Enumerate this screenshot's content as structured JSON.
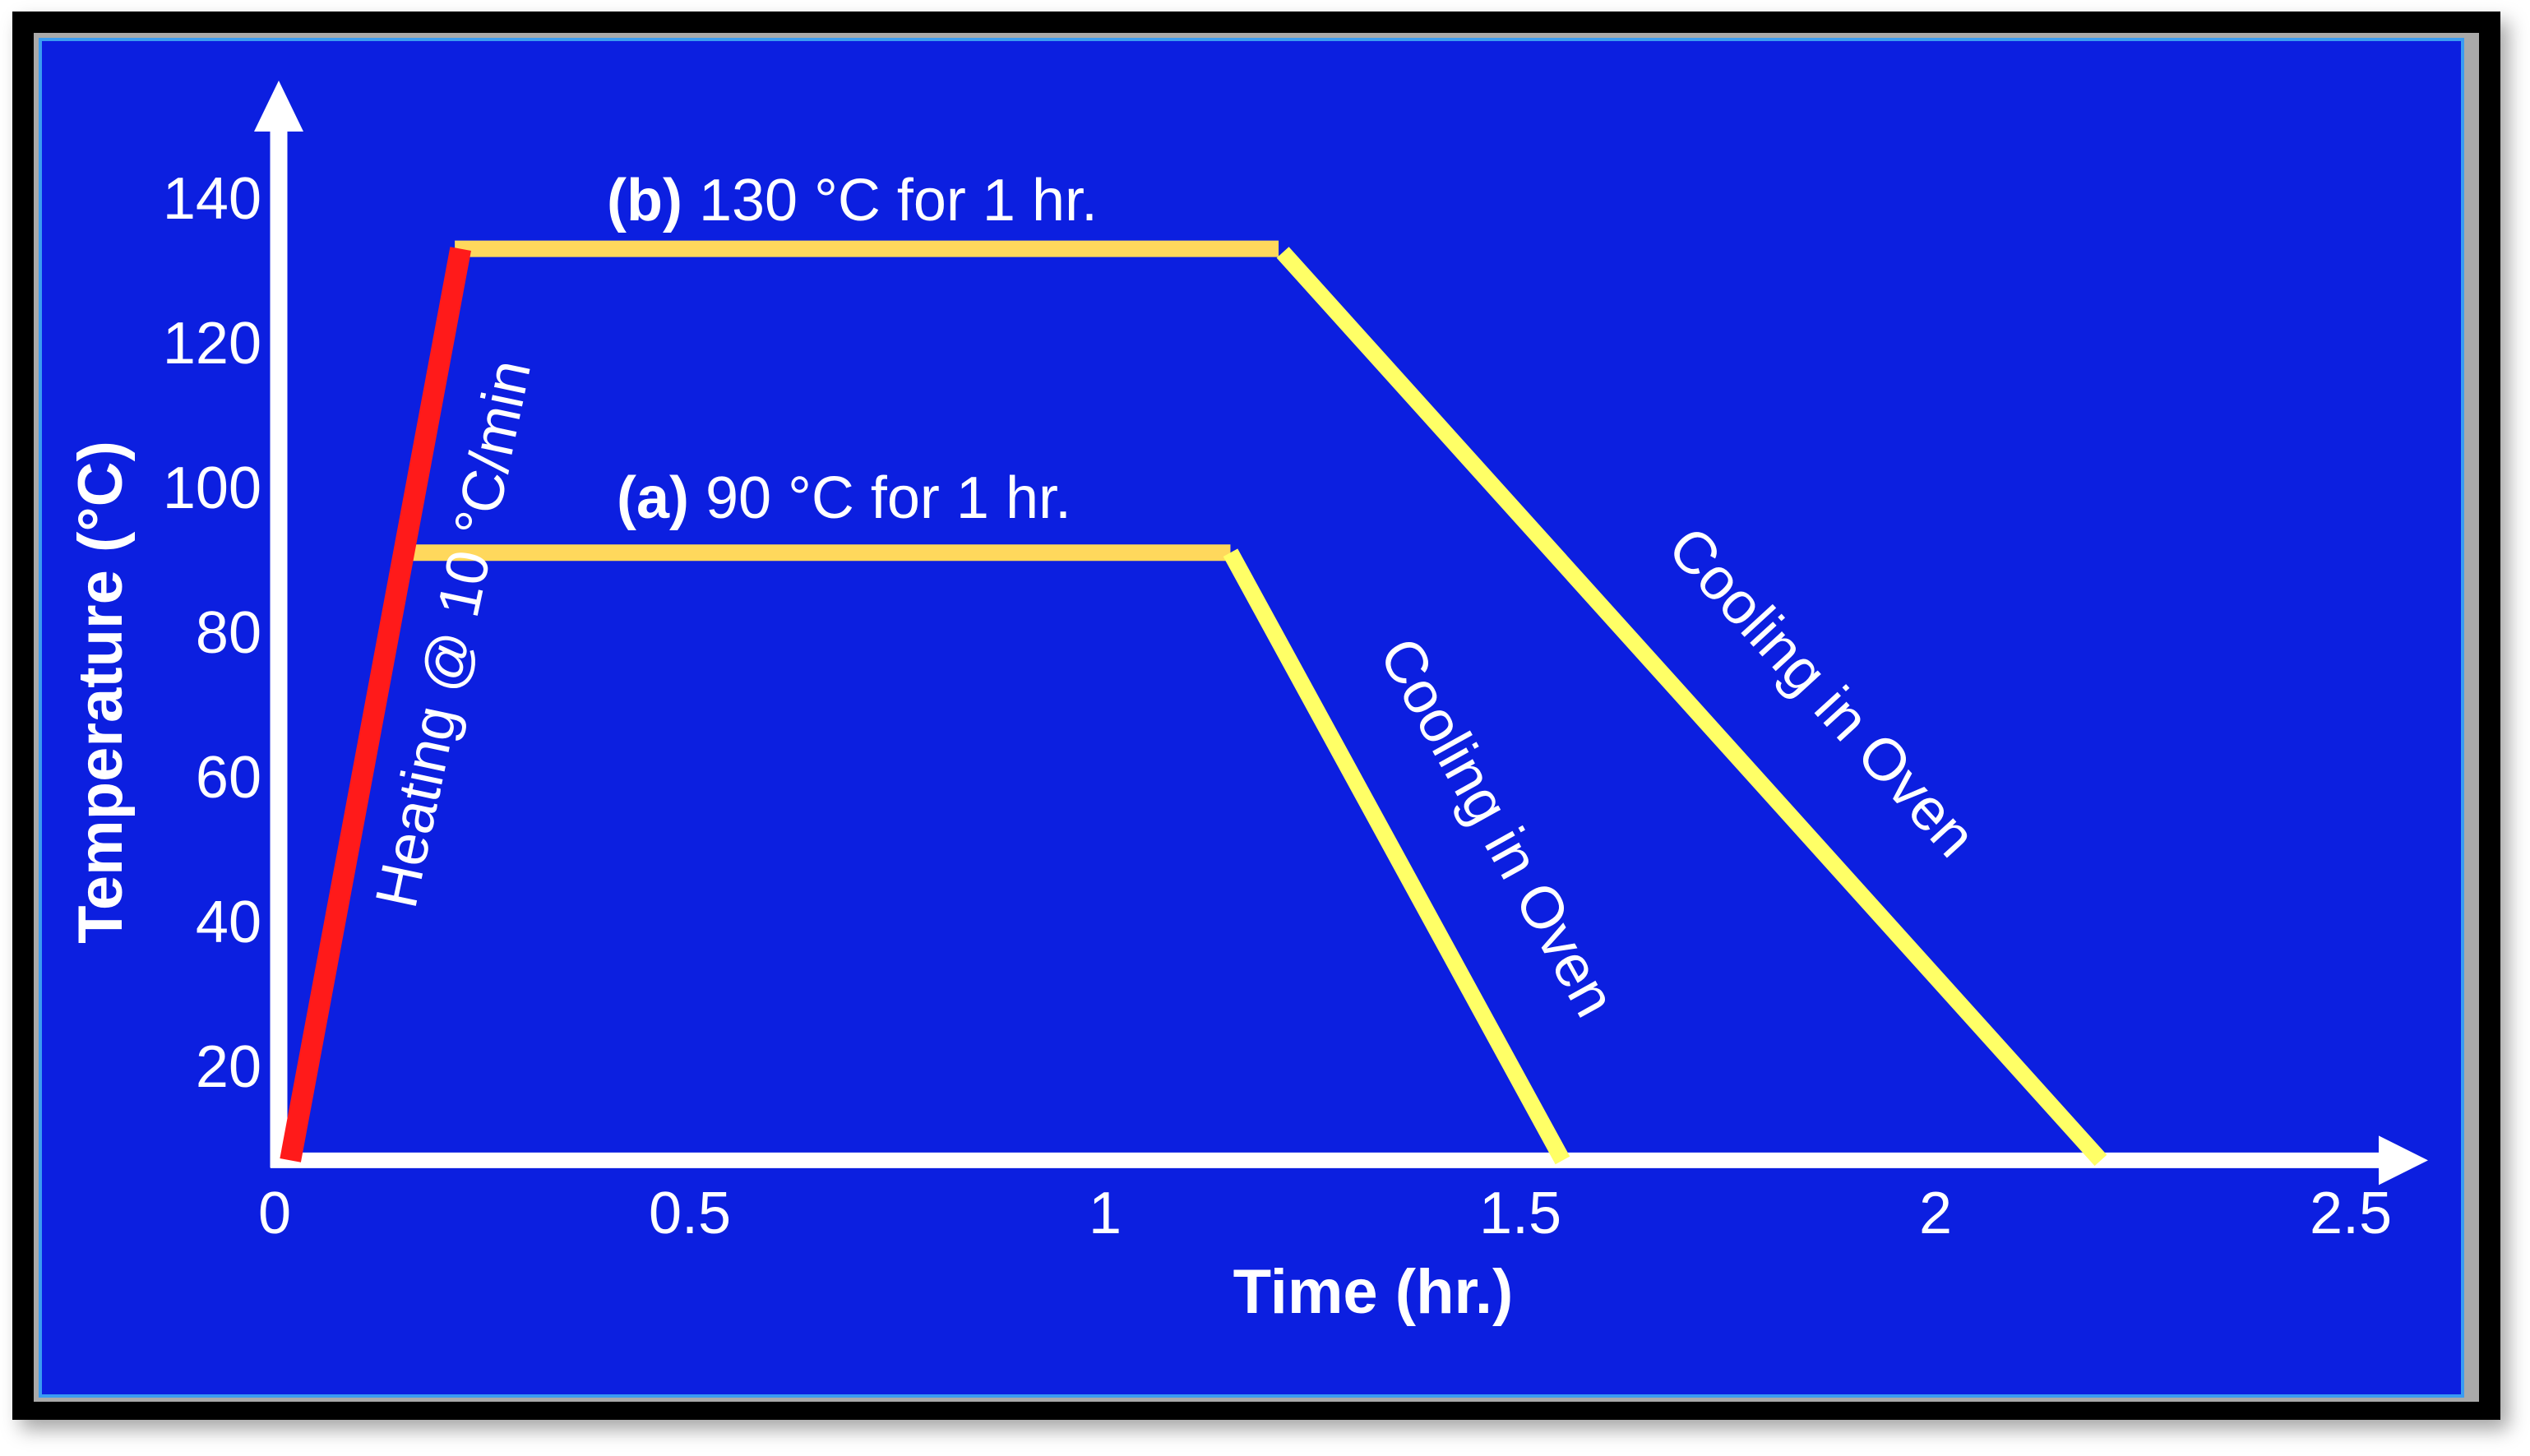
{
  "chart_data": {
    "type": "line",
    "title": "",
    "xlabel": "Time (hr.)",
    "ylabel": "Temperature (°C)",
    "xlim": [
      0,
      2.5
    ],
    "ylim": [
      0,
      140
    ],
    "x_ticks": [
      "0",
      "0.5",
      "1",
      "1.5",
      "2",
      "2.5"
    ],
    "x_tick_values": [
      0,
      0.5,
      1,
      1.5,
      2,
      2.5
    ],
    "y_ticks": [
      "140",
      "120",
      "100",
      "80",
      "60",
      "40",
      "20"
    ],
    "y_tick_values": [
      140,
      120,
      100,
      80,
      60,
      40,
      20
    ],
    "grid": false,
    "axis_origin_temperature": 7,
    "series": [
      {
        "name": "Heating @ 10 °C/min",
        "color": "#ff1a1a",
        "segment": "heating",
        "points": [
          [
            0.015,
            7
          ],
          [
            0.22,
            133
          ]
        ]
      },
      {
        "name": "(a) 90 °C for 1 hr.",
        "color": "#ffd85c",
        "segment": "hold",
        "points": [
          [
            0.155,
            91
          ],
          [
            1.147,
            91
          ]
        ]
      },
      {
        "name": "(a) Cooling in Oven",
        "color": "#ffff66",
        "segment": "cooling",
        "points": [
          [
            1.147,
            91
          ],
          [
            1.547,
            7
          ]
        ]
      },
      {
        "name": "(b) 130 °C for 1 hr.",
        "color": "#ffd85c",
        "segment": "hold",
        "points": [
          [
            0.213,
            133
          ],
          [
            1.205,
            133
          ]
        ]
      },
      {
        "name": "(b) Cooling in Oven",
        "color": "#ffff66",
        "segment": "cooling",
        "points": [
          [
            1.21,
            132.5
          ],
          [
            2.195,
            7
          ]
        ]
      }
    ],
    "annotations": {
      "heating": "Heating @ 10 °C/min",
      "hold_a_bold": "(a)",
      "hold_a_text": " 90 °C for 1 hr.",
      "hold_b_bold": "(b)",
      "hold_b_text": " 130 °C for 1 hr.",
      "cooling_a": "Cooling in Oven",
      "cooling_b": "Cooling in Oven"
    }
  },
  "colors": {
    "background": "#0c1fe0",
    "axis": "#ffffff",
    "heating": "#ff1a1a",
    "hold": "#ffd85c",
    "cooling": "#ffff66",
    "text": "#ffffff"
  }
}
